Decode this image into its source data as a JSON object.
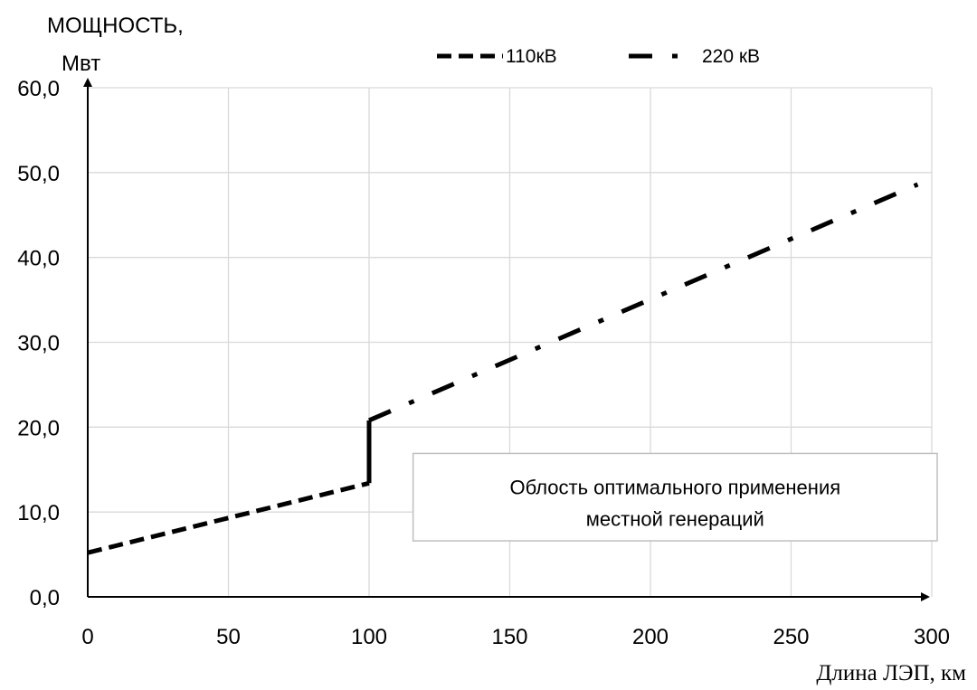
{
  "chart_data": {
    "type": "line",
    "title": "",
    "ylabel_line1": "МОЩНОСТЬ,",
    "ylabel_line2": "Мвт",
    "xlabel": "Длина ЛЭП, км",
    "xlim": [
      0,
      300
    ],
    "ylim": [
      0,
      60
    ],
    "x_ticks": [
      0,
      50,
      100,
      150,
      200,
      250,
      300
    ],
    "x_tick_labels": [
      "0",
      "50",
      "100",
      "150",
      "200",
      "250",
      "300"
    ],
    "y_ticks": [
      0,
      10,
      20,
      30,
      40,
      50,
      60
    ],
    "y_tick_labels": [
      "0,0",
      "10,0",
      "20,0",
      "30,0",
      "40,0",
      "50,0",
      "60,0"
    ],
    "grid": true,
    "legend_position": "top-center",
    "series": [
      {
        "name": "110кВ",
        "style": "dashed",
        "color": "#000000",
        "x": [
          0,
          100
        ],
        "y": [
          5.2,
          13.4
        ]
      },
      {
        "name": "220 кВ",
        "style": "dash-dot",
        "color": "#000000",
        "x": [
          100,
          295
        ],
        "y": [
          20.8,
          48.6
        ]
      }
    ],
    "transition": {
      "style": "solid",
      "color": "#000000",
      "x": [
        100,
        100
      ],
      "y": [
        13.4,
        20.8
      ]
    },
    "annotation": {
      "line1": "Облость оптимального применения",
      "line2": "местной генераций",
      "x_range": [
        115,
        300
      ],
      "y_range": [
        6.6,
        16.9
      ]
    }
  }
}
